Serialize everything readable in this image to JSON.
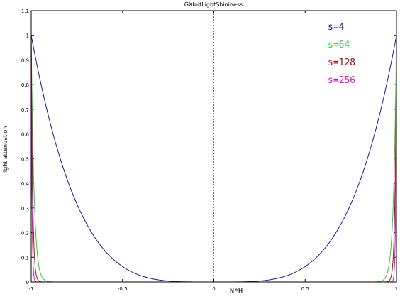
{
  "chart_data": {
    "type": "line",
    "title": "GXInitLightShininess",
    "xlabel": "N*H",
    "ylabel": "light attenuation",
    "xlim": [
      -1,
      1
    ],
    "ylim": [
      0,
      1.1
    ],
    "x_ticks": [
      "-1",
      "-0.5",
      "0",
      "0.5",
      "1"
    ],
    "y_ticks": [
      "0",
      "0.1",
      "0.2",
      "0.3",
      "0.4",
      "0.5",
      "0.6",
      "0.7",
      "0.8",
      "0.9",
      "1",
      "1.1"
    ],
    "vertical_reference_line": 0,
    "grid": false,
    "legend_position": "top-right",
    "series": [
      {
        "name": "s=4",
        "shininess": 4,
        "color": "#1a1a8c"
      },
      {
        "name": "s=64",
        "shininess": 64,
        "color": "#33cc33"
      },
      {
        "name": "s=128",
        "shininess": 128,
        "color": "#a01010"
      },
      {
        "name": "s=256",
        "shininess": 256,
        "color": "#c020c0"
      }
    ]
  }
}
